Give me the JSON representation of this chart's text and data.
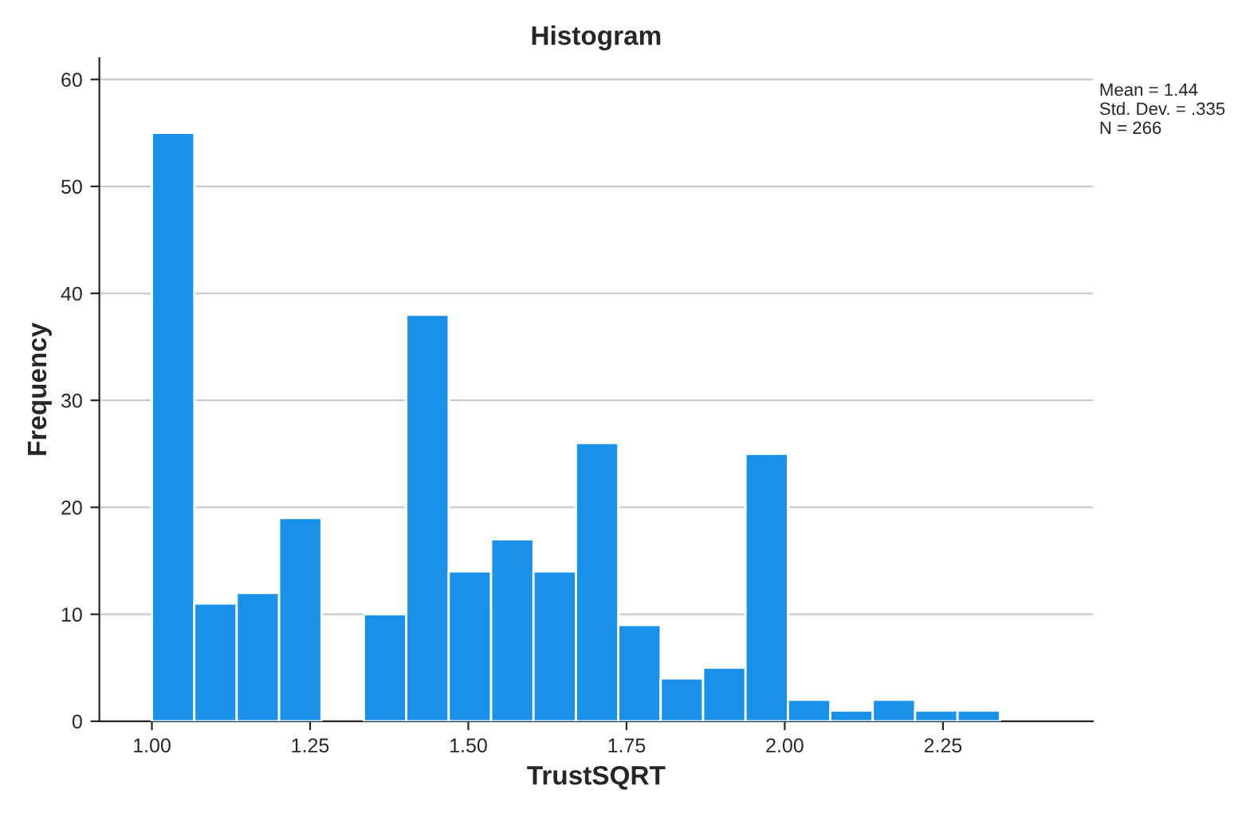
{
  "chart_data": {
    "type": "histogram",
    "title": "Histogram",
    "xlabel": "TrustSQRT",
    "ylabel": "Frequency",
    "bins": [
      1.0,
      1.067,
      1.134,
      1.201,
      1.268,
      1.335,
      1.402,
      1.469,
      1.536,
      1.603,
      1.67,
      1.737,
      1.804,
      1.871,
      1.938,
      2.005,
      2.072,
      2.139,
      2.206,
      2.273,
      2.34
    ],
    "values": [
      55,
      11,
      12,
      19,
      0,
      10,
      38,
      14,
      17,
      14,
      26,
      9,
      4,
      5,
      25,
      2,
      1,
      2,
      1,
      1
    ],
    "color": "#1a91e8",
    "xlim": [
      0.917,
      2.487
    ],
    "xticks": [
      {
        "value": 1.0,
        "label": "1.00"
      },
      {
        "value": 1.25,
        "label": "1.25"
      },
      {
        "value": 1.5,
        "label": "1.50"
      },
      {
        "value": 1.75,
        "label": "1.75"
      },
      {
        "value": 2.0,
        "label": "2.00"
      },
      {
        "value": 2.25,
        "label": "2.25"
      }
    ],
    "ylim": [
      0,
      62
    ],
    "yticks": [
      0,
      10,
      20,
      30,
      40,
      50,
      60
    ],
    "grid": "y",
    "annotations": [
      "Mean = 1.44\nStd. Dev. = .335\nN = 266"
    ]
  }
}
